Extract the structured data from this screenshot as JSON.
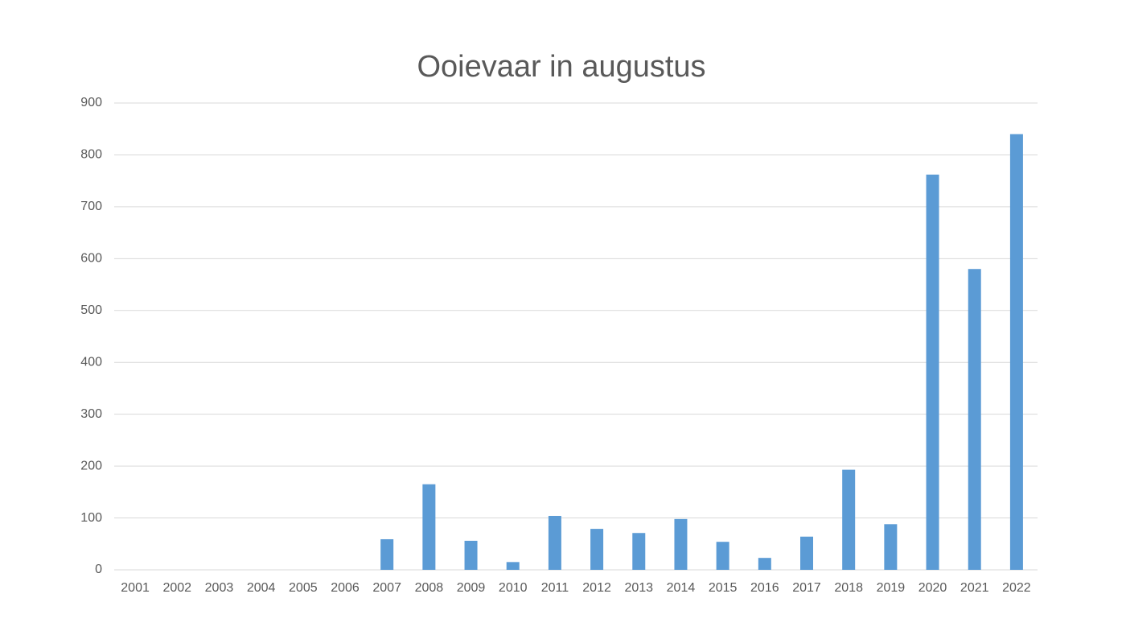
{
  "chart_data": {
    "type": "bar",
    "title": "Ooievaar in augustus",
    "categories": [
      "2001",
      "2002",
      "2003",
      "2004",
      "2005",
      "2006",
      "2007",
      "2008",
      "2009",
      "2010",
      "2011",
      "2012",
      "2013",
      "2014",
      "2015",
      "2016",
      "2017",
      "2018",
      "2019",
      "2020",
      "2021",
      "2022"
    ],
    "values": [
      0,
      0,
      0,
      0,
      0,
      0,
      59,
      165,
      56,
      15,
      104,
      79,
      71,
      98,
      54,
      23,
      64,
      193,
      88,
      762,
      580,
      840
    ],
    "color": "#5b9bd5",
    "ylim": [
      0,
      900
    ],
    "yticks": [
      0,
      100,
      200,
      300,
      400,
      500,
      600,
      700,
      800,
      900
    ],
    "grid": true
  }
}
